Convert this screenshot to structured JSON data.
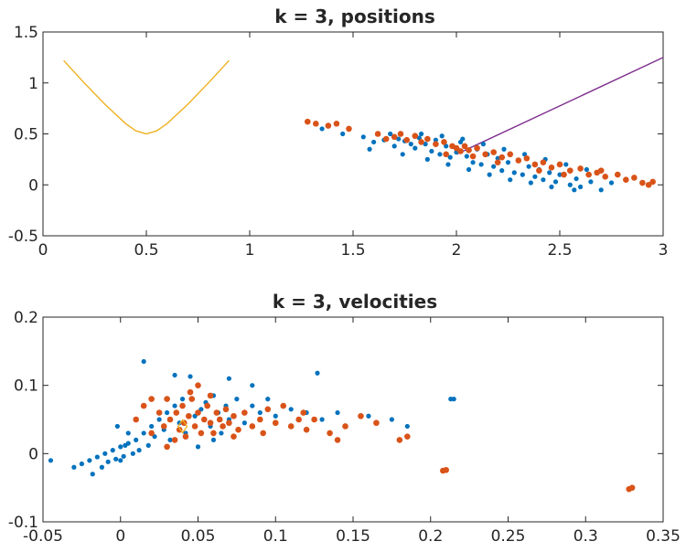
{
  "chart_data": [
    {
      "type": "scatter",
      "title": "k = 3, positions",
      "xlabel": "",
      "ylabel": "",
      "xlim": [
        0,
        3
      ],
      "ylim": [
        -0.5,
        1.5
      ],
      "xticks": [
        0,
        0.5,
        1,
        1.5,
        2,
        2.5,
        3
      ],
      "xtick_labels": [
        "0",
        "0.5",
        "1",
        "1.5",
        "2",
        "2.5",
        "3"
      ],
      "yticks": [
        -0.5,
        0,
        0.5,
        1,
        1.5
      ],
      "ytick_labels": [
        "-0.5",
        "0",
        "0.5",
        "1",
        "1.5"
      ],
      "grid": false,
      "colors": {
        "blue": "#0072BD",
        "orange": "#D95319",
        "yellow": "#EDB120",
        "purple": "#7E2F8E"
      },
      "lines": [
        {
          "color": "yellow",
          "x": [
            0.1,
            0.2,
            0.3,
            0.4,
            0.45,
            0.5,
            0.55,
            0.6,
            0.7,
            0.8,
            0.9
          ],
          "y": [
            1.22,
            1.0,
            0.79,
            0.6,
            0.53,
            0.5,
            0.53,
            0.6,
            0.79,
            1.0,
            1.22
          ]
        },
        {
          "color": "purple",
          "x": [
            2.0,
            3.0
          ],
          "y": [
            0.3,
            1.25
          ]
        }
      ],
      "scatter": {
        "blue_points": [
          [
            1.35,
            0.55
          ],
          [
            1.45,
            0.5
          ],
          [
            1.55,
            0.47
          ],
          [
            1.6,
            0.42
          ],
          [
            1.65,
            0.44
          ],
          [
            1.7,
            0.38
          ],
          [
            1.72,
            0.45
          ],
          [
            1.75,
            0.43
          ],
          [
            1.78,
            0.4
          ],
          [
            1.8,
            0.36
          ],
          [
            1.82,
            0.46
          ],
          [
            1.85,
            0.4
          ],
          [
            1.88,
            0.33
          ],
          [
            1.9,
            0.44
          ],
          [
            1.92,
            0.3
          ],
          [
            1.95,
            0.38
          ],
          [
            1.97,
            0.27
          ],
          [
            2.0,
            0.32
          ],
          [
            2.02,
            0.42
          ],
          [
            2.05,
            0.28
          ],
          [
            2.08,
            0.22
          ],
          [
            2.1,
            0.35
          ],
          [
            2.12,
            0.2
          ],
          [
            2.15,
            0.3
          ],
          [
            2.18,
            0.18
          ],
          [
            2.2,
            0.26
          ],
          [
            2.22,
            0.14
          ],
          [
            2.25,
            0.22
          ],
          [
            2.28,
            0.12
          ],
          [
            2.3,
            0.24
          ],
          [
            2.32,
            0.1
          ],
          [
            2.35,
            0.18
          ],
          [
            2.38,
            0.08
          ],
          [
            2.4,
            0.15
          ],
          [
            2.42,
            0.05
          ],
          [
            2.45,
            0.12
          ],
          [
            2.48,
            0.03
          ],
          [
            2.5,
            0.1
          ],
          [
            2.55,
            0.0
          ],
          [
            2.58,
            0.06
          ],
          [
            2.6,
            -0.02
          ],
          [
            2.65,
            0.03
          ],
          [
            2.7,
            -0.05
          ],
          [
            2.75,
            0.02
          ],
          [
            1.68,
            0.5
          ],
          [
            1.83,
            0.5
          ],
          [
            1.93,
            0.48
          ],
          [
            2.03,
            0.45
          ],
          [
            2.13,
            0.4
          ],
          [
            2.23,
            0.35
          ],
          [
            2.33,
            0.3
          ],
          [
            2.43,
            0.25
          ],
          [
            2.53,
            0.2
          ],
          [
            2.63,
            0.15
          ],
          [
            1.96,
            0.2
          ],
          [
            2.06,
            0.15
          ],
          [
            2.16,
            0.1
          ],
          [
            2.26,
            0.05
          ],
          [
            2.36,
            0.02
          ],
          [
            2.46,
            -0.02
          ],
          [
            1.58,
            0.35
          ],
          [
            1.74,
            0.3
          ],
          [
            1.86,
            0.25
          ],
          [
            2.57,
            -0.05
          ]
        ],
        "orange_points": [
          [
            1.28,
            0.62
          ],
          [
            1.32,
            0.6
          ],
          [
            1.38,
            0.58
          ],
          [
            1.42,
            0.6
          ],
          [
            1.48,
            0.55
          ],
          [
            1.62,
            0.5
          ],
          [
            1.66,
            0.45
          ],
          [
            1.7,
            0.47
          ],
          [
            1.73,
            0.5
          ],
          [
            1.76,
            0.44
          ],
          [
            1.8,
            0.48
          ],
          [
            1.83,
            0.42
          ],
          [
            1.86,
            0.45
          ],
          [
            1.9,
            0.4
          ],
          [
            1.94,
            0.42
          ],
          [
            1.98,
            0.38
          ],
          [
            2.0,
            0.36
          ],
          [
            2.02,
            0.33
          ],
          [
            2.04,
            0.38
          ],
          [
            2.06,
            0.34
          ],
          [
            2.1,
            0.36
          ],
          [
            2.14,
            0.3
          ],
          [
            2.18,
            0.32
          ],
          [
            2.22,
            0.27
          ],
          [
            2.26,
            0.3
          ],
          [
            2.3,
            0.24
          ],
          [
            2.34,
            0.26
          ],
          [
            2.38,
            0.2
          ],
          [
            2.42,
            0.22
          ],
          [
            2.46,
            0.17
          ],
          [
            2.5,
            0.2
          ],
          [
            2.55,
            0.14
          ],
          [
            2.6,
            0.16
          ],
          [
            2.64,
            0.1
          ],
          [
            2.68,
            0.12
          ],
          [
            2.72,
            0.08
          ],
          [
            2.78,
            0.1
          ],
          [
            2.82,
            0.05
          ],
          [
            2.86,
            0.07
          ],
          [
            2.9,
            0.02
          ],
          [
            2.93,
            0.0
          ],
          [
            2.95,
            0.03
          ],
          [
            1.95,
            0.3
          ],
          [
            2.08,
            0.28
          ],
          [
            2.2,
            0.22
          ],
          [
            2.4,
            0.14
          ],
          [
            2.52,
            0.1
          ],
          [
            2.7,
            0.14
          ]
        ]
      }
    },
    {
      "type": "scatter",
      "title": "k = 3, velocities",
      "xlabel": "",
      "ylabel": "",
      "xlim": [
        -0.05,
        0.35
      ],
      "ylim": [
        -0.1,
        0.2
      ],
      "xticks": [
        -0.05,
        0,
        0.05,
        0.1,
        0.15,
        0.2,
        0.25,
        0.3,
        0.35
      ],
      "xtick_labels": [
        "-0.05",
        "0",
        "0.05",
        "0.1",
        "0.15",
        "0.2",
        "0.25",
        "0.3",
        "0.35"
      ],
      "yticks": [
        -0.1,
        0,
        0.1,
        0.2
      ],
      "ytick_labels": [
        "-0.1",
        "0",
        "0.1",
        "0.2"
      ],
      "grid": false,
      "colors": {
        "blue": "#0072BD",
        "orange": "#D95319",
        "yellow": "#EDB120"
      },
      "scatter": {
        "blue_points": [
          [
            -0.045,
            -0.01
          ],
          [
            -0.03,
            -0.02
          ],
          [
            -0.025,
            -0.015
          ],
          [
            -0.02,
            -0.01
          ],
          [
            -0.018,
            -0.03
          ],
          [
            -0.015,
            -0.005
          ],
          [
            -0.012,
            -0.02
          ],
          [
            -0.01,
            0.0
          ],
          [
            -0.008,
            -0.012
          ],
          [
            -0.005,
            0.005
          ],
          [
            -0.003,
            -0.008
          ],
          [
            0.0,
            0.01
          ],
          [
            0.002,
            -0.004
          ],
          [
            0.005,
            0.015
          ],
          [
            0.008,
            0.0
          ],
          [
            0.01,
            0.02
          ],
          [
            0.012,
            0.005
          ],
          [
            0.015,
            0.03
          ],
          [
            0.018,
            0.012
          ],
          [
            0.02,
            0.04
          ],
          [
            0.022,
            0.025
          ],
          [
            0.025,
            0.05
          ],
          [
            0.028,
            0.035
          ],
          [
            0.03,
            0.06
          ],
          [
            0.032,
            0.02
          ],
          [
            0.035,
            0.07
          ],
          [
            0.038,
            0.045
          ],
          [
            0.04,
            0.08
          ],
          [
            0.042,
            0.03
          ],
          [
            0.045,
            0.09
          ],
          [
            0.048,
            0.055
          ],
          [
            0.05,
            0.1
          ],
          [
            0.052,
            0.065
          ],
          [
            0.055,
            0.075
          ],
          [
            0.058,
            0.04
          ],
          [
            0.06,
            0.085
          ],
          [
            0.063,
            0.06
          ],
          [
            0.065,
            0.03
          ],
          [
            0.068,
            0.07
          ],
          [
            0.07,
            0.05
          ],
          [
            0.075,
            0.08
          ],
          [
            0.08,
            0.045
          ],
          [
            0.085,
            0.07
          ],
          [
            0.09,
            0.06
          ],
          [
            0.095,
            0.08
          ],
          [
            0.1,
            0.055
          ],
          [
            0.11,
            0.065
          ],
          [
            0.12,
            0.06
          ],
          [
            0.127,
            0.118
          ],
          [
            0.13,
            0.05
          ],
          [
            0.015,
            0.135
          ],
          [
            0.035,
            0.115
          ],
          [
            0.045,
            0.113
          ],
          [
            0.07,
            0.11
          ],
          [
            0.085,
            0.1
          ],
          [
            0.14,
            0.06
          ],
          [
            0.16,
            0.055
          ],
          [
            0.175,
            0.05
          ],
          [
            0.185,
            0.04
          ],
          [
            0.215,
            0.08
          ],
          [
            0.213,
            0.08
          ],
          [
            0.005,
            0.03
          ],
          [
            -0.002,
            0.04
          ],
          [
            0.0,
            -0.01
          ],
          [
            0.003,
            0.012
          ],
          [
            0.06,
            0.02
          ],
          [
            0.05,
            0.01
          ]
        ],
        "orange_points": [
          [
            0.01,
            0.05
          ],
          [
            0.015,
            0.07
          ],
          [
            0.02,
            0.03
          ],
          [
            0.025,
            0.06
          ],
          [
            0.028,
            0.04
          ],
          [
            0.03,
            0.08
          ],
          [
            0.032,
            0.05
          ],
          [
            0.035,
            0.02
          ],
          [
            0.036,
            0.06
          ],
          [
            0.038,
            0.035
          ],
          [
            0.04,
            0.07
          ],
          [
            0.041,
            0.045
          ],
          [
            0.042,
            0.025
          ],
          [
            0.044,
            0.055
          ],
          [
            0.046,
            0.08
          ],
          [
            0.048,
            0.04
          ],
          [
            0.05,
            0.06
          ],
          [
            0.052,
            0.03
          ],
          [
            0.054,
            0.05
          ],
          [
            0.056,
            0.07
          ],
          [
            0.058,
            0.045
          ],
          [
            0.06,
            0.03
          ],
          [
            0.062,
            0.06
          ],
          [
            0.064,
            0.05
          ],
          [
            0.066,
            0.04
          ],
          [
            0.068,
            0.065
          ],
          [
            0.07,
            0.045
          ],
          [
            0.073,
            0.055
          ],
          [
            0.076,
            0.035
          ],
          [
            0.08,
            0.06
          ],
          [
            0.085,
            0.04
          ],
          [
            0.09,
            0.05
          ],
          [
            0.095,
            0.065
          ],
          [
            0.1,
            0.045
          ],
          [
            0.105,
            0.07
          ],
          [
            0.11,
            0.04
          ],
          [
            0.115,
            0.05
          ],
          [
            0.12,
            0.035
          ],
          [
            0.125,
            0.05
          ],
          [
            0.135,
            0.03
          ],
          [
            0.14,
            0.02
          ],
          [
            0.145,
            0.04
          ],
          [
            0.155,
            0.055
          ],
          [
            0.165,
            0.045
          ],
          [
            0.18,
            0.02
          ],
          [
            0.185,
            0.025
          ],
          [
            0.208,
            -0.025
          ],
          [
            0.21,
            -0.024
          ],
          [
            0.33,
            -0.05
          ],
          [
            0.328,
            -0.052
          ],
          [
            0.045,
            0.09
          ],
          [
            0.05,
            0.1
          ],
          [
            0.058,
            0.085
          ],
          [
            0.03,
            0.01
          ],
          [
            0.02,
            0.08
          ],
          [
            0.073,
            0.025
          ],
          [
            0.092,
            0.03
          ],
          [
            0.118,
            0.06
          ]
        ],
        "marker": {
          "color": "yellow",
          "x": 0.04,
          "y": 0.04
        }
      }
    }
  ]
}
